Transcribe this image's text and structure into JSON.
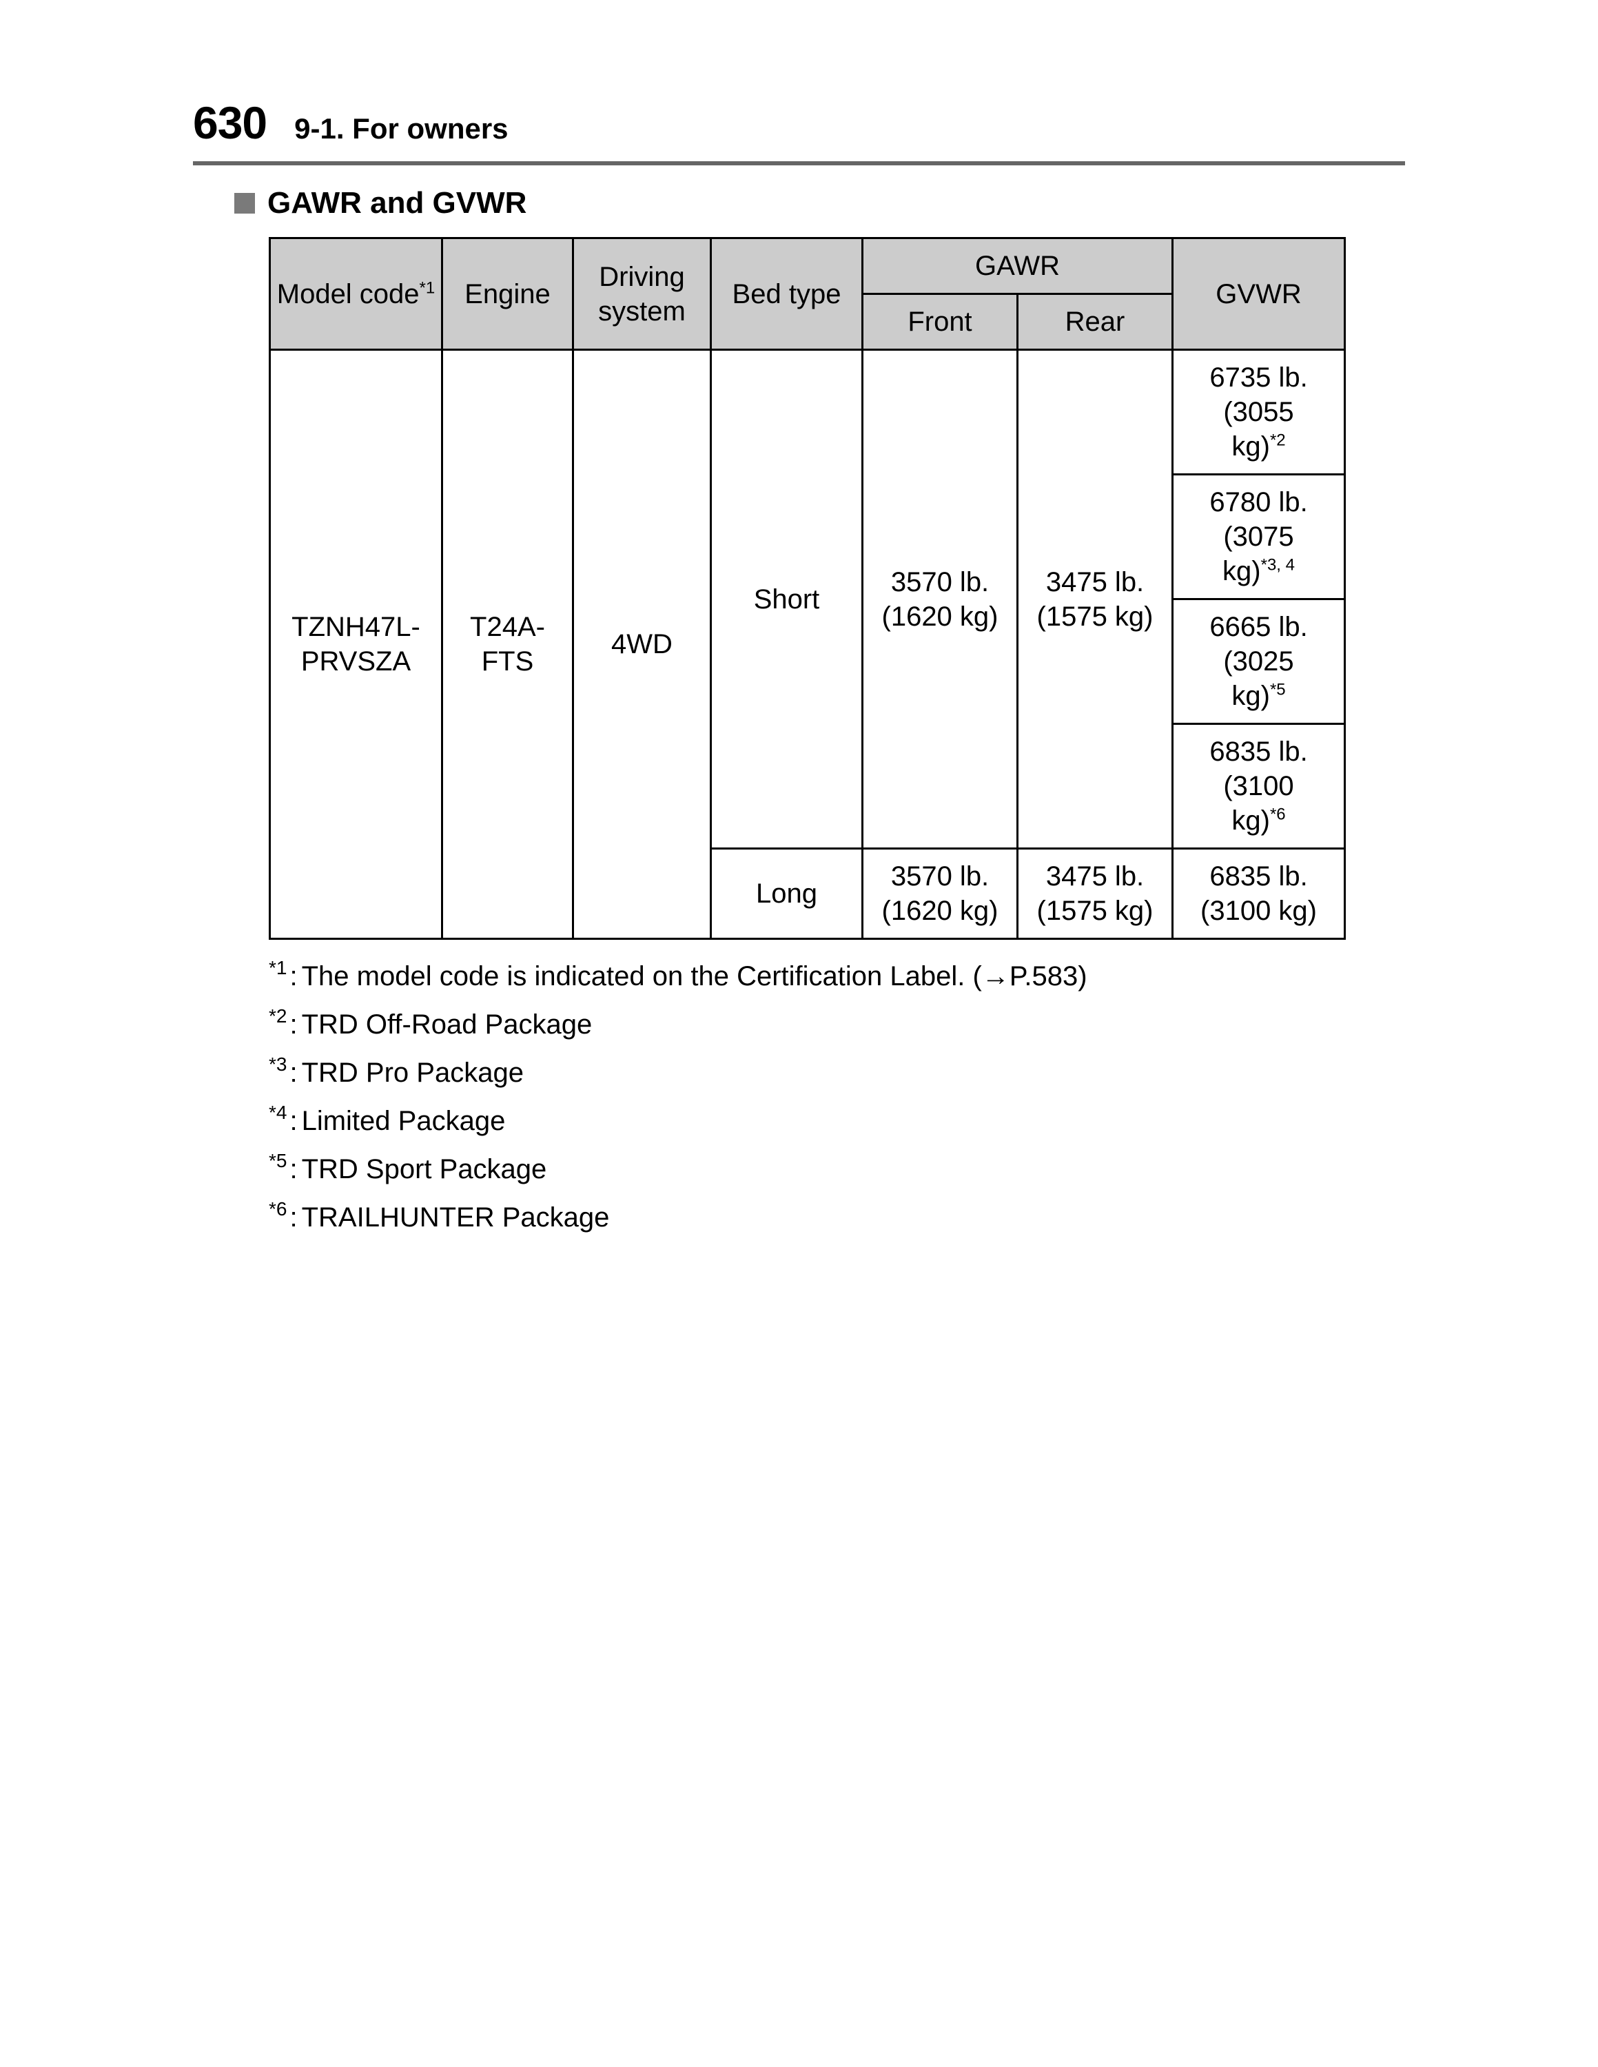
{
  "page": {
    "number": "630",
    "section": "9-1. For owners"
  },
  "subheading": "GAWR and GVWR",
  "table": {
    "header_bg": "#cccccc",
    "border_color": "#000000",
    "columns": {
      "model_code_label": "Model code",
      "model_code_sup": "*1",
      "engine": "Engine",
      "driving_system": "Driving system",
      "bed_type": "Bed type",
      "gawr": "GAWR",
      "gawr_front": "Front",
      "gawr_rear": "Rear",
      "gvwr": "GVWR"
    },
    "body": {
      "model_code_l1": "TZNH47L-",
      "model_code_l2": "PRVSZA",
      "engine_l1": "T24A-",
      "engine_l2": "FTS",
      "driving_system": "4WD",
      "bed_short": "Short",
      "bed_long": "Long",
      "short_front_l1": "3570 lb.",
      "short_front_l2": "(1620 kg)",
      "short_rear_l1": "3475 lb.",
      "short_rear_l2": "(1575 kg)",
      "long_front_l1": "3570 lb.",
      "long_front_l2": "(1620 kg)",
      "long_rear_l1": "3475 lb.",
      "long_rear_l2": "(1575 kg)",
      "gvwr1_l1": "6735 lb.",
      "gvwr1_l2a": "(3055",
      "gvwr1_l2b": "kg)",
      "gvwr1_sup": "*2",
      "gvwr2_l1": "6780 lb.",
      "gvwr2_l2a": "(3075",
      "gvwr2_l2b": "kg)",
      "gvwr2_sup": "*3, 4",
      "gvwr3_l1": "6665 lb.",
      "gvwr3_l2a": "(3025",
      "gvwr3_l2b": "kg)",
      "gvwr3_sup": "*5",
      "gvwr4_l1": "6835 lb.",
      "gvwr4_l2a": "(3100",
      "gvwr4_l2b": "kg)",
      "gvwr4_sup": "*6",
      "gvwr5_l1": "6835 lb.",
      "gvwr5_l2": "(3100 kg)"
    }
  },
  "footnotes": {
    "f1_mark": "*1",
    "f1_text": "The model code is indicated on the Certification Label. (→P.583)",
    "f2_mark": "*2",
    "f2_text": "TRD Off-Road Package",
    "f3_mark": "*3",
    "f3_text": "TRD Pro Package",
    "f4_mark": "*4",
    "f4_text": "Limited Package",
    "f5_mark": "*5",
    "f5_text": "TRD Sport Package",
    "f6_mark": "*6",
    "f6_text": "TRAILHUNTER Package"
  }
}
